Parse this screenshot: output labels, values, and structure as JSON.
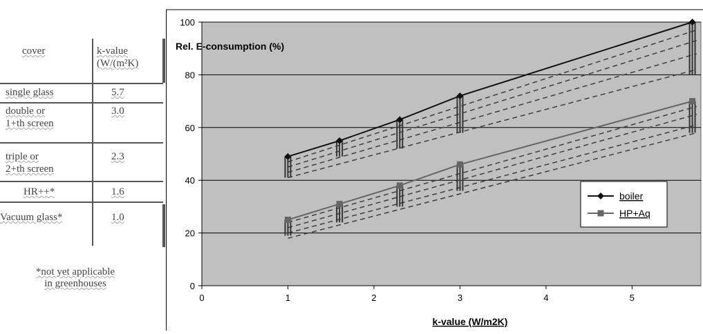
{
  "table": {
    "header_cover": "cover",
    "header_kvalue_line1": "k-value",
    "header_kvalue_line2": "(W/(m²K)",
    "rows": [
      {
        "cover_line1": "single glass",
        "cover_line2": "",
        "k": "5.7"
      },
      {
        "cover_line1": "double or",
        "cover_line2": "1+th screen",
        "k": "3.0"
      },
      {
        "cover_line1": "triple or",
        "cover_line2": "2+th screen",
        "k": "2.3"
      },
      {
        "cover_line1": "HR++*",
        "cover_line2": "",
        "k": "1.6"
      },
      {
        "cover_line1": "Vacuum glass*",
        "cover_line2": "",
        "k": "1.0"
      }
    ],
    "footnote_line1": "*not yet applicable",
    "footnote_line2": "in greenhouses"
  },
  "chart_data": {
    "type": "line",
    "title": "Rel. E-consumption (%)",
    "xlabel": "k-value (W/m2K)",
    "ylabel": "",
    "xlim": [
      0,
      5.8
    ],
    "ylim": [
      0,
      100
    ],
    "x_ticks": [
      0,
      1,
      2,
      3,
      4,
      5
    ],
    "y_ticks": [
      0,
      20,
      40,
      60,
      80,
      100
    ],
    "grid": "horizontal",
    "legend_position": "right",
    "background": "#c0c0c0",
    "series": [
      {
        "name": "boiler",
        "marker": "diamond",
        "color": "#111111",
        "x": [
          1.0,
          1.6,
          2.3,
          3.0,
          5.7
        ],
        "y": [
          49,
          55,
          63,
          72,
          100
        ],
        "range_bars": [
          [
            41,
            49
          ],
          [
            49,
            55
          ],
          [
            52,
            63
          ],
          [
            58,
            72
          ],
          [
            80,
            100
          ]
        ],
        "dashed_lines": [
          [
            [
              1.0,
              47
            ],
            [
              5.75,
              97
            ]
          ],
          [
            [
              1.0,
              45
            ],
            [
              5.75,
              93
            ]
          ],
          [
            [
              1.0,
              43
            ],
            [
              5.75,
              88
            ]
          ],
          [
            [
              1.0,
              41
            ],
            [
              5.75,
              82
            ]
          ]
        ]
      },
      {
        "name": "HP+Aq",
        "marker": "square",
        "color": "#666666",
        "x": [
          1.0,
          1.6,
          2.3,
          3.0,
          5.7
        ],
        "y": [
          25,
          31,
          38,
          46,
          70
        ],
        "range_bars": [
          [
            19,
            25
          ],
          [
            24,
            31
          ],
          [
            30,
            38
          ],
          [
            36,
            46
          ],
          [
            58,
            70
          ]
        ],
        "dashed_lines": [
          [
            [
              1.0,
              24
            ],
            [
              5.75,
              68
            ]
          ],
          [
            [
              1.0,
              22
            ],
            [
              5.75,
              65
            ]
          ],
          [
            [
              1.0,
              20
            ],
            [
              5.75,
              61
            ]
          ],
          [
            [
              1.0,
              18
            ],
            [
              5.75,
              58
            ]
          ]
        ]
      }
    ]
  }
}
